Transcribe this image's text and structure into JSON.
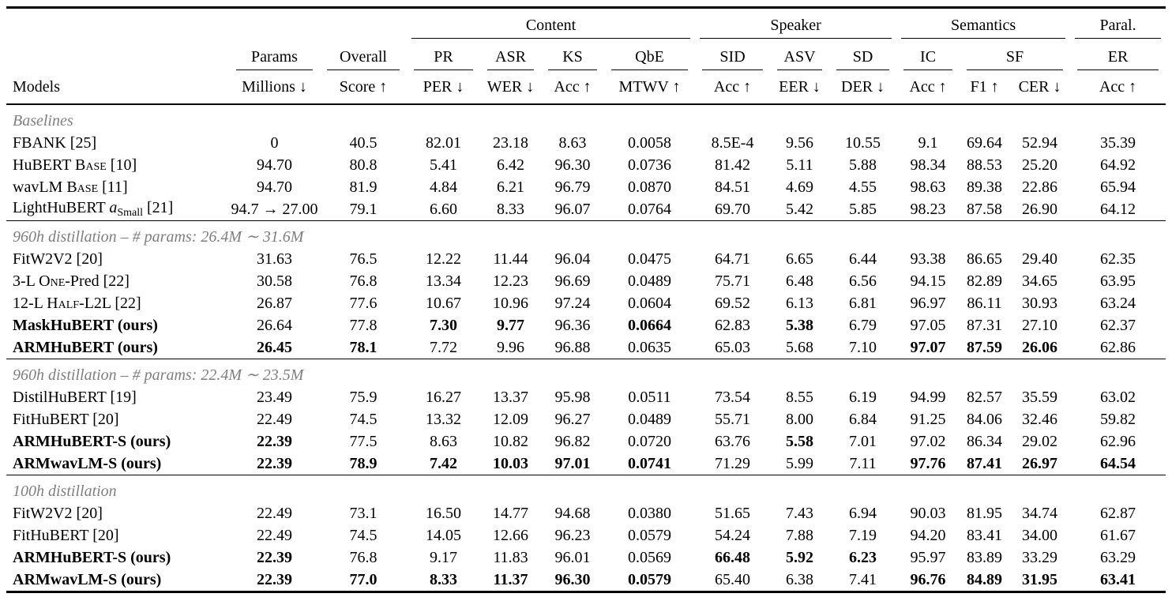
{
  "colors": {
    "background": "#ffffff",
    "text": "#000000",
    "rule": "#000000",
    "section_label": "#7f7f7f"
  },
  "table": {
    "column_keys": [
      "params",
      "overall",
      "pr",
      "asr",
      "ks",
      "qbe",
      "sid",
      "asv",
      "sd",
      "ic",
      "f1",
      "cer",
      "er"
    ],
    "header": {
      "models_label": "Models",
      "groups": [
        {
          "label": "Content",
          "span": 4
        },
        {
          "label": "Speaker",
          "span": 3
        },
        {
          "label": "Semantics",
          "span": 3
        },
        {
          "label": "Paral.",
          "span": 1
        }
      ],
      "tasks": [
        {
          "label": "Params",
          "span": 1
        },
        {
          "label": "Overall",
          "span": 1
        },
        {
          "label": "PR",
          "span": 1
        },
        {
          "label": "ASR",
          "span": 1
        },
        {
          "label": "KS",
          "span": 1
        },
        {
          "label": "QbE",
          "span": 1
        },
        {
          "label": "SID",
          "span": 1
        },
        {
          "label": "ASV",
          "span": 1
        },
        {
          "label": "SD",
          "span": 1
        },
        {
          "label": "IC",
          "span": 1
        },
        {
          "label": "SF",
          "span": 2
        },
        {
          "label": "ER",
          "span": 1
        }
      ],
      "metrics": [
        "Millions ↓",
        "Score ↑",
        "PER ↓",
        "WER ↓",
        "Acc ↑",
        "MTWV ↑",
        "Acc ↑",
        "EER ↓",
        "DER ↓",
        "Acc ↑",
        "F1 ↑",
        "CER ↓",
        "Acc ↑"
      ]
    },
    "sections": [
      {
        "label": "Baselines",
        "rows": [
          {
            "name": [
              {
                "t": "FBANK [25]"
              }
            ],
            "bold_name": false,
            "values": [
              "0",
              "40.5",
              "82.01",
              "23.18",
              "8.63",
              "0.0058",
              "8.5E-4",
              "9.56",
              "10.55",
              "9.1",
              "69.64",
              "52.94",
              "35.39"
            ],
            "bold": []
          },
          {
            "name": [
              {
                "t": "HuBERT "
              },
              {
                "t": "Base",
                "s": "sc"
              },
              {
                "t": " [10]"
              }
            ],
            "bold_name": false,
            "values": [
              "94.70",
              "80.8",
              "5.41",
              "6.42",
              "96.30",
              "0.0736",
              "81.42",
              "5.11",
              "5.88",
              "98.34",
              "88.53",
              "25.20",
              "64.92"
            ],
            "bold": []
          },
          {
            "name": [
              {
                "t": "wavLM "
              },
              {
                "t": "Base",
                "s": "sc"
              },
              {
                "t": " [11]"
              }
            ],
            "bold_name": false,
            "values": [
              "94.70",
              "81.9",
              "4.84",
              "6.21",
              "96.79",
              "0.0870",
              "84.51",
              "4.69",
              "4.55",
              "98.63",
              "89.38",
              "22.86",
              "65.94"
            ],
            "bold": []
          },
          {
            "name": [
              {
                "t": "LightHuBERT "
              },
              {
                "t": "a",
                "s": "i"
              },
              {
                "t": "Small",
                "s": "sub"
              },
              {
                "t": " [21]"
              }
            ],
            "bold_name": false,
            "values": [
              "94.7 → 27.00",
              "79.1",
              "6.60",
              "8.33",
              "96.07",
              "0.0764",
              "69.70",
              "5.42",
              "5.85",
              "98.23",
              "87.58",
              "26.90",
              "64.12"
            ],
            "bold": []
          }
        ]
      },
      {
        "label": "960h distillation – # params: 26.4M ∼ 31.6M",
        "rows": [
          {
            "name": [
              {
                "t": "FitW2V2 [20]"
              }
            ],
            "bold_name": false,
            "values": [
              "31.63",
              "76.5",
              "12.22",
              "11.44",
              "96.04",
              "0.0475",
              "64.71",
              "6.65",
              "6.44",
              "93.38",
              "86.65",
              "29.40",
              "62.35"
            ],
            "bold": []
          },
          {
            "name": [
              {
                "t": "3-L "
              },
              {
                "t": "One",
                "s": "sc"
              },
              {
                "t": "-Pred [22]"
              }
            ],
            "bold_name": false,
            "values": [
              "30.58",
              "76.8",
              "13.34",
              "12.23",
              "96.69",
              "0.0489",
              "75.71",
              "6.48",
              "6.56",
              "94.15",
              "82.89",
              "34.65",
              "63.95"
            ],
            "bold": []
          },
          {
            "name": [
              {
                "t": "12-L "
              },
              {
                "t": "Half",
                "s": "sc"
              },
              {
                "t": "-L2L [22]"
              }
            ],
            "bold_name": false,
            "values": [
              "26.87",
              "77.6",
              "10.67",
              "10.96",
              "97.24",
              "0.0604",
              "69.52",
              "6.13",
              "6.81",
              "96.97",
              "86.11",
              "30.93",
              "63.24"
            ],
            "bold": []
          },
          {
            "name": [
              {
                "t": "MaskHuBERT (ours)"
              }
            ],
            "bold_name": true,
            "values": [
              "26.64",
              "77.8",
              "7.30",
              "9.77",
              "96.36",
              "0.0664",
              "62.83",
              "5.38",
              "6.79",
              "97.05",
              "87.31",
              "27.10",
              "62.37"
            ],
            "bold": [
              2,
              3,
              5,
              7
            ]
          },
          {
            "name": [
              {
                "t": "ARMHuBERT (ours)"
              }
            ],
            "bold_name": true,
            "values": [
              "26.45",
              "78.1",
              "7.72",
              "9.96",
              "96.88",
              "0.0635",
              "65.03",
              "5.68",
              "7.10",
              "97.07",
              "87.59",
              "26.06",
              "62.86"
            ],
            "bold": [
              0,
              1,
              9,
              10,
              11
            ]
          }
        ]
      },
      {
        "label": "960h distillation – # params: 22.4M ∼ 23.5M",
        "rows": [
          {
            "name": [
              {
                "t": "DistilHuBERT [19]"
              }
            ],
            "bold_name": false,
            "values": [
              "23.49",
              "75.9",
              "16.27",
              "13.37",
              "95.98",
              "0.0511",
              "73.54",
              "8.55",
              "6.19",
              "94.99",
              "82.57",
              "35.59",
              "63.02"
            ],
            "bold": []
          },
          {
            "name": [
              {
                "t": "FitHuBERT [20]"
              }
            ],
            "bold_name": false,
            "values": [
              "22.49",
              "74.5",
              "13.32",
              "12.09",
              "96.27",
              "0.0489",
              "55.71",
              "8.00",
              "6.84",
              "91.25",
              "84.06",
              "32.46",
              "59.82"
            ],
            "bold": []
          },
          {
            "name": [
              {
                "t": "ARMHuBERT-S (ours)"
              }
            ],
            "bold_name": true,
            "values": [
              "22.39",
              "77.5",
              "8.63",
              "10.82",
              "96.82",
              "0.0720",
              "63.76",
              "5.58",
              "7.01",
              "97.02",
              "86.34",
              "29.02",
              "62.96"
            ],
            "bold": [
              0,
              7
            ]
          },
          {
            "name": [
              {
                "t": "ARMwavLM-S (ours)"
              }
            ],
            "bold_name": true,
            "values": [
              "22.39",
              "78.9",
              "7.42",
              "10.03",
              "97.01",
              "0.0741",
              "71.29",
              "5.99",
              "7.11",
              "97.76",
              "87.41",
              "26.97",
              "64.54"
            ],
            "bold": [
              0,
              1,
              2,
              3,
              4,
              5,
              9,
              10,
              11,
              12
            ]
          }
        ]
      },
      {
        "label": "100h distillation",
        "rows": [
          {
            "name": [
              {
                "t": "FitW2V2 [20]"
              }
            ],
            "bold_name": false,
            "values": [
              "22.49",
              "73.1",
              "16.50",
              "14.77",
              "94.68",
              "0.0380",
              "51.65",
              "7.43",
              "6.94",
              "90.03",
              "81.95",
              "34.74",
              "62.87"
            ],
            "bold": []
          },
          {
            "name": [
              {
                "t": "FitHuBERT [20]"
              }
            ],
            "bold_name": false,
            "values": [
              "22.49",
              "74.5",
              "14.05",
              "12.66",
              "96.23",
              "0.0579",
              "54.24",
              "7.88",
              "7.19",
              "94.20",
              "83.41",
              "34.00",
              "61.67"
            ],
            "bold": []
          },
          {
            "name": [
              {
                "t": "ARMHuBERT-S (ours)"
              }
            ],
            "bold_name": true,
            "values": [
              "22.39",
              "76.8",
              "9.17",
              "11.83",
              "96.01",
              "0.0569",
              "66.48",
              "5.92",
              "6.23",
              "95.97",
              "83.89",
              "33.29",
              "63.29"
            ],
            "bold": [
              0,
              6,
              7,
              8
            ]
          },
          {
            "name": [
              {
                "t": "ARMwavLM-S (ours)"
              }
            ],
            "bold_name": true,
            "values": [
              "22.39",
              "77.0",
              "8.33",
              "11.37",
              "96.30",
              "0.0579",
              "65.40",
              "6.38",
              "7.41",
              "96.76",
              "84.89",
              "31.95",
              "63.41"
            ],
            "bold": [
              0,
              1,
              2,
              3,
              4,
              5,
              9,
              10,
              11,
              12
            ]
          }
        ]
      }
    ]
  }
}
